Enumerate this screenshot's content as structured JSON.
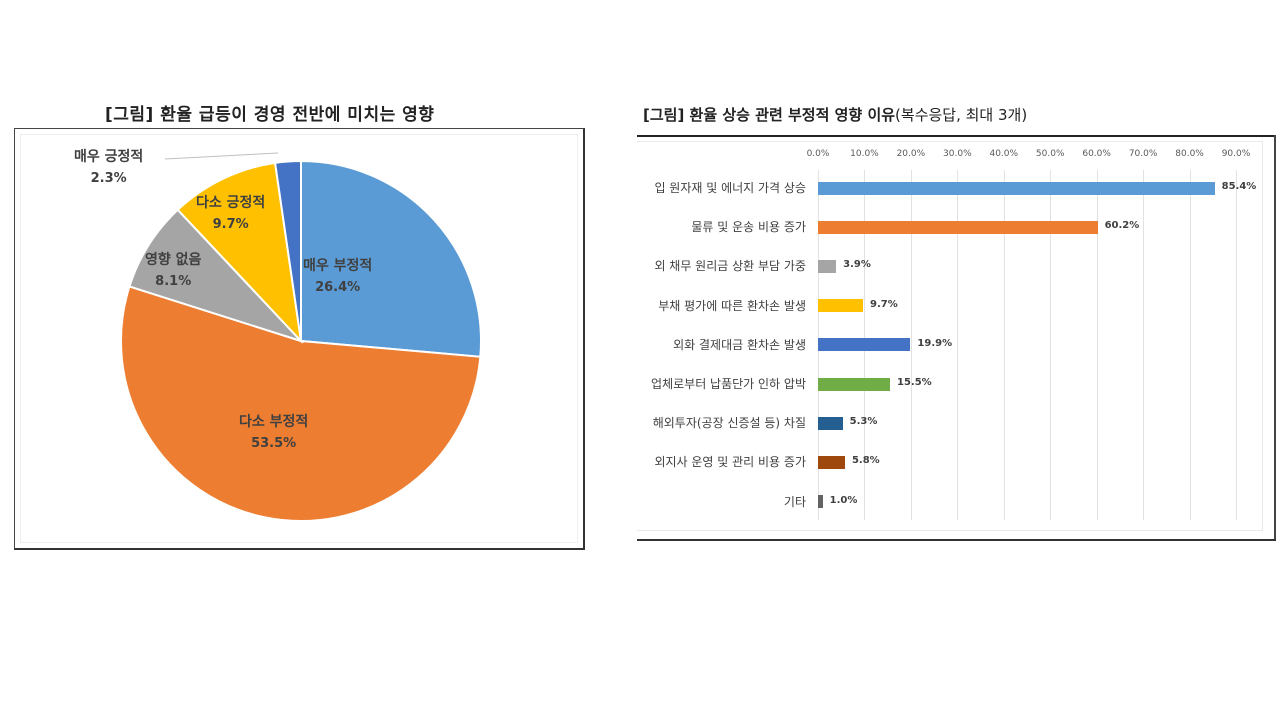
{
  "left_chart": {
    "title": "[그림] 환율 급등이 경영 전반에 미치는 영향",
    "slices": [
      {
        "label": "매우 부정적",
        "value": "26.4%",
        "color": "#5B9BD5"
      },
      {
        "label": "다소 부정적",
        "value": "53.5%",
        "color": "#ED7D31"
      },
      {
        "label": "영향 없음",
        "value": "8.1%",
        "color": "#A5A5A5"
      },
      {
        "label": "다소 긍정적",
        "value": "9.7%",
        "color": "#FFC000"
      },
      {
        "label": "매우 긍정적",
        "value": "2.3%",
        "color": "#4472C4"
      }
    ]
  },
  "right_chart": {
    "title_bold": "[그림] 환율 상승 관련 부정적 영향 이유",
    "title_normal": "(복수응답, 최대 3개)",
    "ticks": [
      "0.0%",
      "10.0%",
      "20.0%",
      "30.0%",
      "40.0%",
      "50.0%",
      "60.0%",
      "70.0%",
      "80.0%",
      "90.0%"
    ],
    "bars": [
      {
        "label": "입 원자재 및 에너지 가격 상승",
        "value": "85.4%",
        "color": "#5B9BD5"
      },
      {
        "label": "물류 및 운송 비용 증가",
        "value": "60.2%",
        "color": "#ED7D31"
      },
      {
        "label": "외 채무 원리금 상환 부담 가중",
        "value": "3.9%",
        "color": "#A5A5A5"
      },
      {
        "label": "부채 평가에 따른 환차손 발생",
        "value": "9.7%",
        "color": "#FFC000"
      },
      {
        "label": "외화 결제대금 환차손 발생",
        "value": "19.9%",
        "color": "#4472C4"
      },
      {
        "label": "업체로부터 납품단가 인하 압박",
        "value": "15.5%",
        "color": "#70AD47"
      },
      {
        "label": "해외투자(공장 신증설 등) 차질",
        "value": "5.3%",
        "color": "#255E91"
      },
      {
        "label": "외지사 운영 및 관리 비용 증가",
        "value": "5.8%",
        "color": "#9E480E"
      },
      {
        "label": "기타",
        "value": "1.0%",
        "color": "#636363"
      }
    ]
  },
  "chart_data": [
    {
      "type": "pie",
      "title": "[그림] 환율 급등이 경영 전반에 미치는 영향",
      "categories": [
        "매우 부정적",
        "다소 부정적",
        "영향 없음",
        "다소 긍정적",
        "매우 긍정적"
      ],
      "values": [
        26.4,
        53.5,
        8.1,
        9.7,
        2.3
      ],
      "colors": [
        "#5B9BD5",
        "#ED7D31",
        "#A5A5A5",
        "#FFC000",
        "#4472C4"
      ],
      "unit": "%",
      "legend": "none (data labels on slices)"
    },
    {
      "type": "bar",
      "orientation": "horizontal",
      "title": "[그림] 환율 상승 관련 부정적 영향 이유(복수응답, 최대 3개)",
      "categories": [
        "입 원자재 및 에너지 가격 상승",
        "물류 및 운송 비용 증가",
        "외 채무 원리금 상환 부담 가중",
        "부채 평가에 따른 환차손 발생",
        "외화 결제대금 환차손 발생",
        "업체로부터 납품단가 인하 압박",
        "해외투자(공장 신증설 등) 차질",
        "외지사 운영 및 관리 비용 증가",
        "기타"
      ],
      "values": [
        85.4,
        60.2,
        3.9,
        9.7,
        19.9,
        15.5,
        5.3,
        5.8,
        1.0
      ],
      "xlim": [
        0,
        90
      ],
      "xticks": [
        "0.0%",
        "10.0%",
        "20.0%",
        "30.0%",
        "40.0%",
        "50.0%",
        "60.0%",
        "70.0%",
        "80.0%",
        "90.0%"
      ],
      "xaxis_position": "top",
      "grid": "vertical",
      "xlabel": "",
      "ylabel": ""
    }
  ]
}
